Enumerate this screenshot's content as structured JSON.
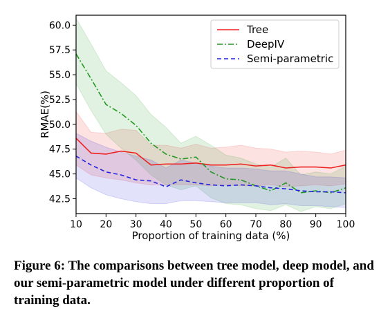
{
  "chart_data": {
    "type": "line",
    "xlabel": "Proportion of training data (%)",
    "ylabel": "RMAE(%)",
    "xlim": [
      10,
      100
    ],
    "ylim": [
      41.0,
      61.0
    ],
    "xticks": [
      10,
      20,
      30,
      40,
      50,
      60,
      70,
      80,
      90,
      100
    ],
    "yticks": [
      42.5,
      45.0,
      47.5,
      50.0,
      52.5,
      55.0,
      57.5,
      60.0
    ],
    "ytick_labels": [
      "42.5",
      "45.0",
      "47.5",
      "50.0",
      "52.5",
      "55.0",
      "57.5",
      "60.0"
    ],
    "grid": false,
    "legend_position": "top-right",
    "x": [
      10,
      15,
      20,
      25,
      30,
      35,
      40,
      45,
      50,
      55,
      60,
      65,
      70,
      75,
      80,
      85,
      90,
      95,
      100
    ],
    "series": [
      {
        "name": "Tree",
        "color": "#ee2222",
        "style": "solid",
        "values": [
          48.6,
          47.1,
          47.0,
          47.3,
          47.1,
          45.9,
          46.0,
          46.0,
          46.1,
          45.9,
          45.9,
          46.0,
          45.8,
          45.9,
          45.6,
          45.7,
          45.7,
          45.6,
          45.9
        ],
        "lower": [
          45.9,
          44.9,
          44.6,
          44.4,
          44.1,
          43.9,
          43.9,
          43.9,
          43.9,
          43.8,
          43.9,
          43.8,
          43.8,
          43.9,
          43.7,
          43.8,
          43.9,
          43.8,
          44.0
        ],
        "upper": [
          51.3,
          49.2,
          49.1,
          49.5,
          49.4,
          47.9,
          47.9,
          47.6,
          48.0,
          47.6,
          47.7,
          47.9,
          47.6,
          47.5,
          47.2,
          47.3,
          47.2,
          47.0,
          47.4
        ]
      },
      {
        "name": "DeepIV",
        "color": "#229922",
        "style": "dashdot",
        "values": [
          57.1,
          54.6,
          52.0,
          51.1,
          49.9,
          48.1,
          47.0,
          46.5,
          46.7,
          45.2,
          44.5,
          44.4,
          43.8,
          43.3,
          44.1,
          43.1,
          43.3,
          43.1,
          43.6
        ],
        "lower": [
          54.1,
          51.4,
          49.0,
          47.6,
          46.4,
          44.9,
          43.9,
          43.4,
          43.8,
          42.6,
          42.0,
          41.9,
          41.5,
          41.3,
          41.9,
          41.2,
          41.7,
          41.5,
          42.0
        ],
        "upper": [
          60.7,
          58.1,
          55.4,
          54.2,
          52.9,
          51.0,
          49.7,
          48.1,
          48.8,
          47.9,
          46.9,
          46.6,
          46.0,
          45.7,
          46.6,
          44.9,
          45.2,
          45.0,
          45.8
        ]
      },
      {
        "name": "Semi-parametric",
        "color": "#2222dd",
        "style": "dashed",
        "values": [
          46.8,
          45.9,
          45.2,
          44.9,
          44.4,
          44.3,
          43.7,
          44.4,
          44.1,
          43.9,
          43.8,
          43.9,
          43.8,
          43.6,
          43.5,
          43.3,
          43.2,
          43.2,
          43.1
        ],
        "lower": [
          44.6,
          43.6,
          42.9,
          42.5,
          42.2,
          42.0,
          42.0,
          42.3,
          42.3,
          42.2,
          42.1,
          42.1,
          42.1,
          41.9,
          42.0,
          41.8,
          41.8,
          41.7,
          41.6
        ],
        "upper": [
          49.1,
          48.3,
          47.7,
          47.2,
          46.8,
          46.4,
          45.6,
          46.4,
          46.1,
          45.8,
          45.6,
          45.6,
          45.5,
          45.3,
          45.3,
          45.0,
          44.7,
          44.7,
          44.6
        ]
      }
    ]
  },
  "caption": "Figure 6: The comparisons between tree model, deep model, and our semi-parametric model under different proportion of training data."
}
